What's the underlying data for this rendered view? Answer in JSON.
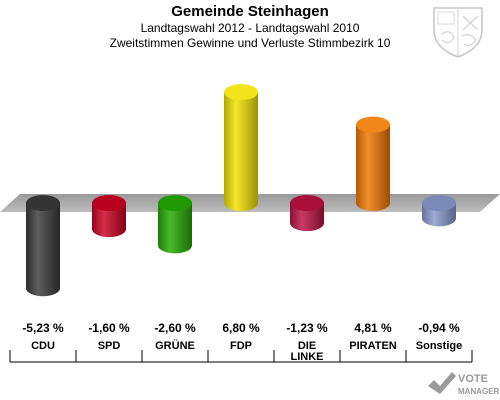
{
  "title": "Gemeinde Steinhagen",
  "subtitle": "Landtagswahl 2012 - Landtagswahl 2010",
  "subtitle2": "Zweitstimmen Gewinne und Verluste Stimmbezirk 10",
  "watermark": {
    "line1": "VOTE",
    "line2": "MANAGER"
  },
  "chart_data": {
    "type": "bar",
    "title": "Zweitstimmen Gewinne und Verluste Stimmbezirk 10",
    "categories": [
      "CDU",
      "SPD",
      "GRÜNE",
      "FDP",
      "DIE LINKE",
      "PIRATEN",
      "Sonstige"
    ],
    "category_lines": [
      [
        "CDU"
      ],
      [
        "SPD"
      ],
      [
        "GRÜNE"
      ],
      [
        "FDP"
      ],
      [
        "DIE",
        "LINKE"
      ],
      [
        "PIRATEN"
      ],
      [
        "Sonstige"
      ]
    ],
    "values": [
      -5.23,
      -1.6,
      -2.6,
      6.8,
      -1.23,
      4.81,
      -0.94
    ],
    "value_labels": [
      "-5,23 %",
      "-1,60 %",
      "-2,60 %",
      "6,80 %",
      "-1,23 %",
      "4,81 %",
      "-0,94 %"
    ],
    "colors": [
      "#3a3a3a",
      "#cc0022",
      "#22aa00",
      "#f0e000",
      "#bb1144",
      "#ee7700",
      "#8899cc"
    ],
    "xlabel": "",
    "ylabel": "",
    "grid": false
  }
}
